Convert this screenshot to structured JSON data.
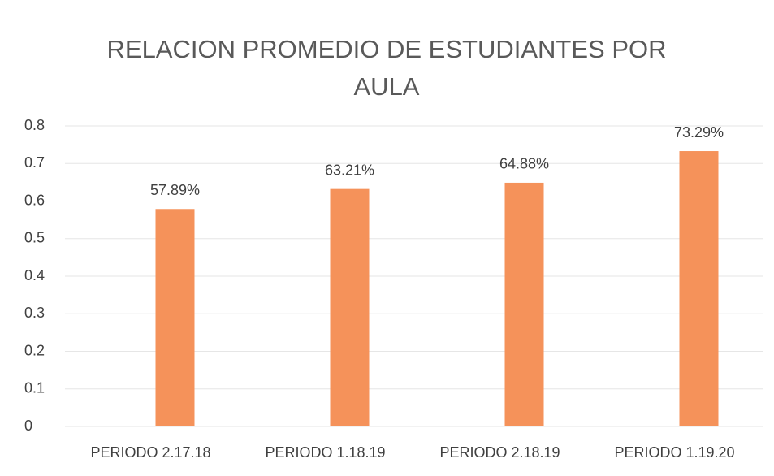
{
  "chart_data": {
    "type": "bar",
    "title": "RELACION PROMEDIO DE ESTUDIANTES POR AULA",
    "categories": [
      "PERIODO 2.17.18",
      "PERIODO 1.18.19",
      "PERIODO 2.18.19",
      "PERIODO 1.19.20"
    ],
    "values": [
      0.5789,
      0.6321,
      0.6488,
      0.7329
    ],
    "value_labels": [
      "57.89%",
      "63.21%",
      "64.88%",
      "73.29%"
    ],
    "color": "#f5925a",
    "ylim": [
      0,
      0.8
    ],
    "yticks": [
      0,
      0.1,
      0.2,
      0.3,
      0.4,
      0.5,
      0.6,
      0.7,
      0.8
    ],
    "grid": true
  }
}
